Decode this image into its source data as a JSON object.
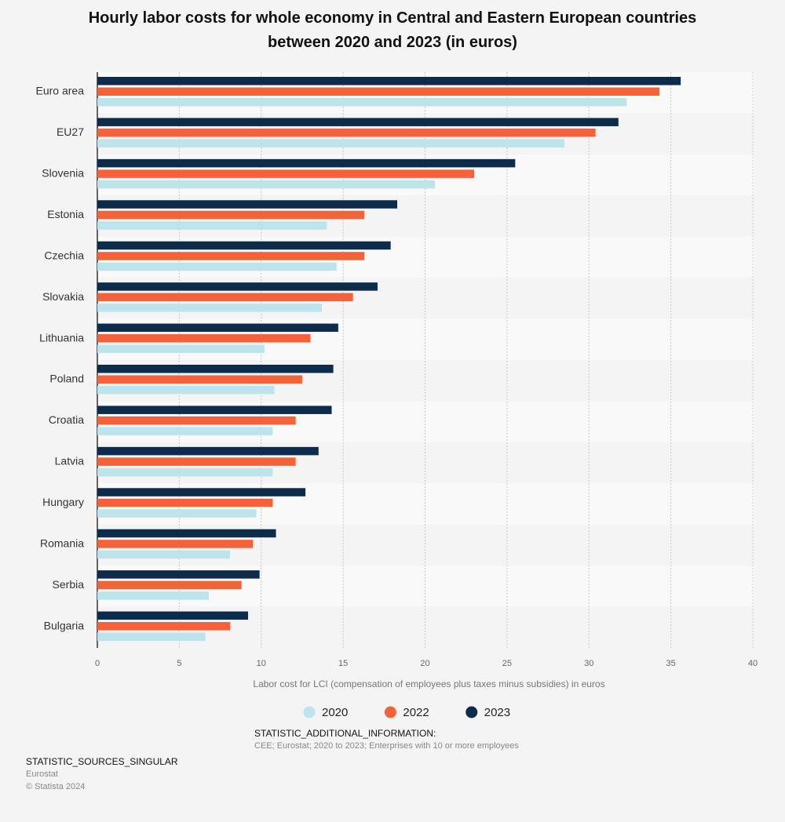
{
  "chart_data": {
    "type": "hbar",
    "title": "Hourly labor costs for whole economy in Central and Eastern European countries between 2020 and 2023 (in euros)",
    "x_label": "Labor cost for LCI (compensation of employees plus taxes minus subsidies) in euros",
    "categories": [
      "Euro area",
      "EU27",
      "Slovenia",
      "Estonia",
      "Czechia",
      "Slovakia",
      "Lithuania",
      "Poland",
      "Croatia",
      "Latvia",
      "Hungary",
      "Romania",
      "Serbia",
      "Bulgaria"
    ],
    "series": [
      {
        "name": "2020",
        "color": "#bde3ec",
        "values": [
          32.3,
          28.5,
          20.6,
          14.0,
          14.6,
          13.7,
          10.2,
          10.8,
          10.7,
          10.7,
          9.7,
          8.1,
          6.8,
          6.6
        ]
      },
      {
        "name": "2022",
        "color": "#f4623a",
        "values": [
          34.3,
          30.4,
          23.0,
          16.3,
          16.3,
          15.6,
          13.0,
          12.5,
          12.1,
          12.1,
          10.7,
          9.5,
          8.8,
          8.1
        ]
      },
      {
        "name": "2023",
        "color": "#0d2b4a",
        "values": [
          35.6,
          31.8,
          25.5,
          18.3,
          17.9,
          17.1,
          14.7,
          14.4,
          14.3,
          13.5,
          12.7,
          10.9,
          9.9,
          9.2
        ]
      }
    ],
    "xlim": [
      0,
      40
    ],
    "xticks": [
      0,
      5,
      10,
      15,
      20,
      25,
      30,
      35,
      40
    ],
    "grid": true,
    "additional_info_label": "STATISTIC_ADDITIONAL_INFORMATION:",
    "additional_info": "CEE; Eurostat; 2020 to 2023; Enterprises with 10 or more employees",
    "source_label": "STATISTIC_SOURCES_SINGULAR",
    "source": "Eurostat",
    "copyright": "© Statista 2024"
  }
}
